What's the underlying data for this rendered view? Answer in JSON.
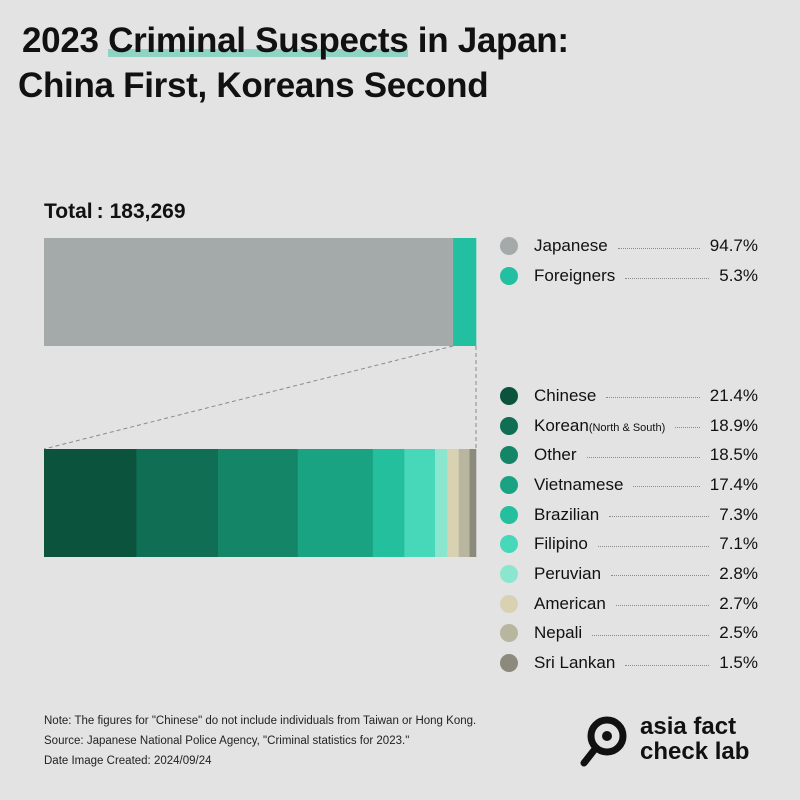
{
  "title": {
    "part1": "2023 ",
    "highlight1": "Criminal  Suspects",
    "part2": " in Japan:",
    "line2": "China First, Koreans Second"
  },
  "total": {
    "label": "Total",
    "separator": ":",
    "value": "183,269"
  },
  "chart_data": [
    {
      "type": "bar",
      "stacked": true,
      "orientation": "horizontal",
      "series": [
        {
          "name": "Japanese",
          "value": 94.7,
          "value_label": "94.7%",
          "color": "#a4aaaa"
        },
        {
          "name": "Foreigners",
          "value": 5.3,
          "value_label": "5.3%",
          "color": "#22c0a0"
        }
      ]
    },
    {
      "type": "bar",
      "stacked": true,
      "orientation": "horizontal",
      "series": [
        {
          "name": "Chinese",
          "sub": "",
          "value": 21.4,
          "value_label": "21.4%",
          "color": "#0b533d"
        },
        {
          "name": "Korean",
          "sub": "(North & South)",
          "value": 18.9,
          "value_label": "18.9%",
          "color": "#0f6e53"
        },
        {
          "name": "Other",
          "sub": "",
          "value": 18.5,
          "value_label": "18.5%",
          "color": "#158568"
        },
        {
          "name": "Vietnamese",
          "sub": "",
          "value": 17.4,
          "value_label": "17.4%",
          "color": "#1aa382"
        },
        {
          "name": "Brazilian",
          "sub": "",
          "value": 7.3,
          "value_label": "7.3%",
          "color": "#24bf9d"
        },
        {
          "name": "Filipino",
          "sub": "",
          "value": 7.1,
          "value_label": "7.1%",
          "color": "#46d8b8"
        },
        {
          "name": "Peruvian",
          "sub": "",
          "value": 2.8,
          "value_label": "2.8%",
          "color": "#8ae6cf"
        },
        {
          "name": "American",
          "sub": "",
          "value": 2.7,
          "value_label": "2.7%",
          "color": "#d8d1b2"
        },
        {
          "name": "Nepali",
          "sub": "",
          "value": 2.5,
          "value_label": "2.5%",
          "color": "#b9b6a0"
        },
        {
          "name": "Sri Lankan",
          "sub": "",
          "value": 1.5,
          "value_label": "1.5%",
          "color": "#8c8a7c"
        }
      ]
    }
  ],
  "notes": [
    "Note: The figures for \"Chinese\" do not include individuals from Taiwan or Hong Kong.",
    "Source: Japanese National Police Agency, \"Criminal statistics for 2023.\"",
    "Date Image Created: 2024/09/24"
  ],
  "logo": {
    "line1": "asia fact",
    "line2": "check lab",
    "icon": "magnifier-icon",
    "color": "#111111"
  }
}
